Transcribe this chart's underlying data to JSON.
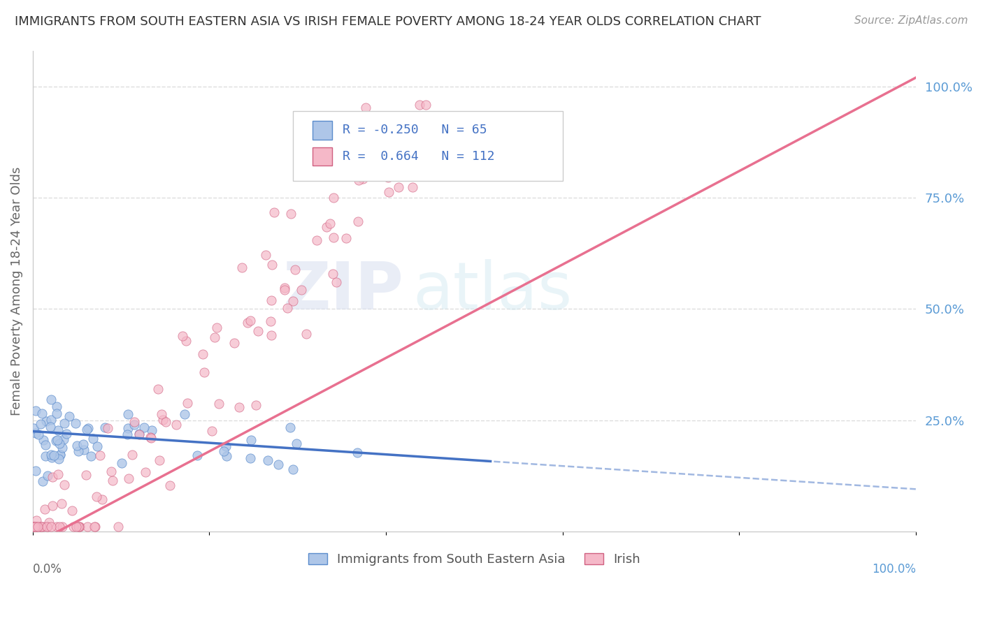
{
  "title": "IMMIGRANTS FROM SOUTH EASTERN ASIA VS IRISH FEMALE POVERTY AMONG 18-24 YEAR OLDS CORRELATION CHART",
  "source": "Source: ZipAtlas.com",
  "ylabel": "Female Poverty Among 18-24 Year Olds",
  "blue_R": -0.25,
  "blue_N": 65,
  "pink_R": 0.664,
  "pink_N": 112,
  "blue_color": "#aec6e8",
  "pink_color": "#f5b8c8",
  "blue_line_color": "#4472c4",
  "pink_line_color": "#e87090",
  "blue_edge_color": "#5b8ccc",
  "pink_edge_color": "#d06080",
  "legend_label_blue": "Immigrants from South Eastern Asia",
  "legend_label_pink": "Irish",
  "ytick_labels": [
    "25.0%",
    "50.0%",
    "75.0%",
    "100.0%"
  ],
  "ytick_values": [
    0.25,
    0.5,
    0.75,
    1.0
  ],
  "watermark_zip": "ZIP",
  "watermark_atlas": "atlas",
  "background_color": "#ffffff",
  "plot_bg_color": "#ffffff",
  "grid_color": "#dddddd",
  "spine_color": "#cccccc"
}
